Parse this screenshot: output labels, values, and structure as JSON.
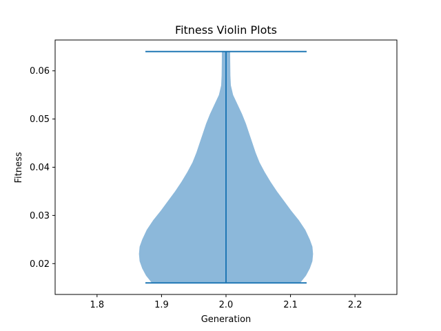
{
  "chart_data": {
    "type": "violin",
    "title": "Fitness Violin Plots",
    "xlabel": "Generation",
    "ylabel": "Fitness",
    "xlim": [
      1.735,
      2.265
    ],
    "ylim": [
      0.0136,
      0.0664
    ],
    "xticks": [
      {
        "value": 1.8,
        "label": "1.8"
      },
      {
        "value": 1.9,
        "label": "1.9"
      },
      {
        "value": 2.0,
        "label": "2.0"
      },
      {
        "value": 2.1,
        "label": "2.1"
      },
      {
        "value": 2.2,
        "label": "2.2"
      }
    ],
    "yticks": [
      {
        "value": 0.02,
        "label": "0.02"
      },
      {
        "value": 0.03,
        "label": "0.03"
      },
      {
        "value": 0.04,
        "label": "0.04"
      },
      {
        "value": 0.05,
        "label": "0.05"
      },
      {
        "value": 0.06,
        "label": "0.06"
      }
    ],
    "violin": {
      "position": 2.0,
      "min": 0.016,
      "max": 0.064,
      "cap_halfwidth": 0.125,
      "fill_color": "#8cb8da",
      "line_color": "#1f77b4",
      "density": [
        [
          0.016,
          0.115
        ],
        [
          0.0175,
          0.124
        ],
        [
          0.019,
          0.13
        ],
        [
          0.0205,
          0.134
        ],
        [
          0.022,
          0.135
        ],
        [
          0.0235,
          0.134
        ],
        [
          0.025,
          0.13
        ],
        [
          0.027,
          0.123
        ],
        [
          0.029,
          0.113
        ],
        [
          0.031,
          0.101
        ],
        [
          0.033,
          0.09
        ],
        [
          0.035,
          0.079
        ],
        [
          0.037,
          0.069
        ],
        [
          0.039,
          0.06
        ],
        [
          0.041,
          0.052
        ],
        [
          0.043,
          0.046
        ],
        [
          0.045,
          0.041
        ],
        [
          0.047,
          0.036
        ],
        [
          0.049,
          0.031
        ],
        [
          0.051,
          0.025
        ],
        [
          0.053,
          0.018
        ],
        [
          0.055,
          0.011
        ],
        [
          0.057,
          0.0075
        ],
        [
          0.059,
          0.0068
        ],
        [
          0.062,
          0.0065
        ],
        [
          0.064,
          0.0064
        ]
      ]
    },
    "grid": false
  }
}
